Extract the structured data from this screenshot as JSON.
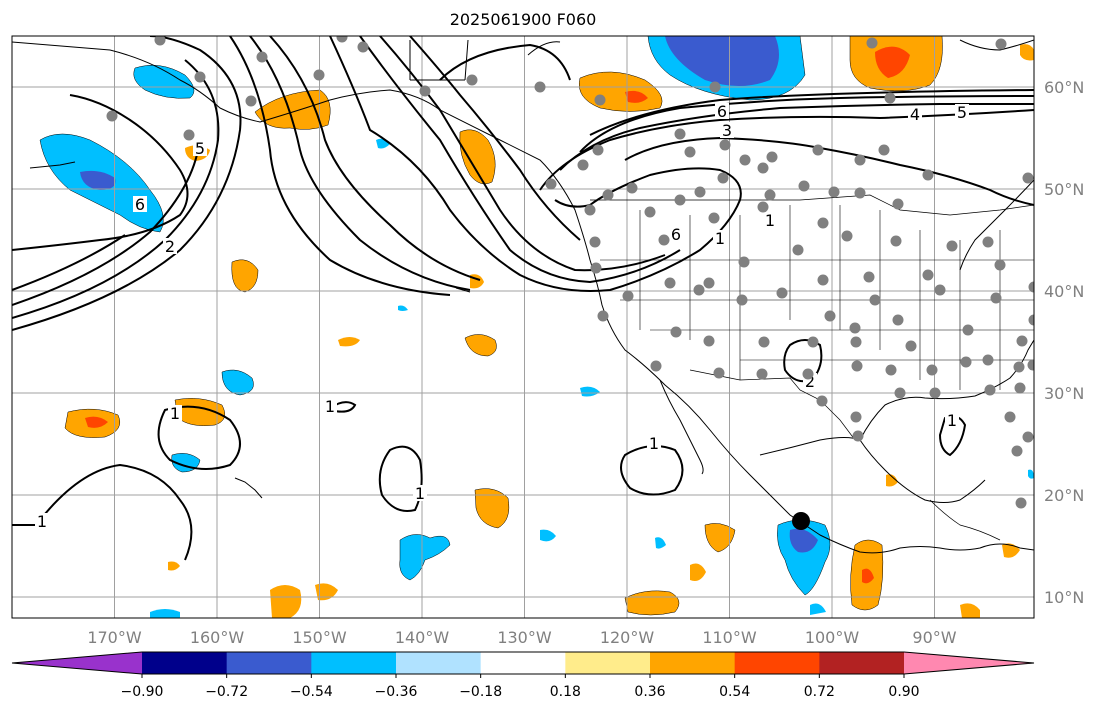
{
  "title": "2025061900 F060",
  "lon_ticks": [
    {
      "lon": -170,
      "label": "170°W"
    },
    {
      "lon": -160,
      "label": "160°W"
    },
    {
      "lon": -150,
      "label": "150°W"
    },
    {
      "lon": -140,
      "label": "140°W"
    },
    {
      "lon": -130,
      "label": "130°W"
    },
    {
      "lon": -120,
      "label": "120°W"
    },
    {
      "lon": -110,
      "label": "110°W"
    },
    {
      "lon": -100,
      "label": "100°W"
    },
    {
      "lon": -90,
      "label": "90°W"
    }
  ],
  "lat_ticks": [
    {
      "lat": 60,
      "label": "60°N"
    },
    {
      "lat": 50,
      "label": "50°N"
    },
    {
      "lat": 40,
      "label": "40°N"
    },
    {
      "lat": 30,
      "label": "30°N"
    },
    {
      "lat": 20,
      "label": "20°N"
    },
    {
      "lat": 10,
      "label": "10°N"
    }
  ],
  "colorbar": {
    "colors": [
      "#9932cc",
      "#00008b",
      "#3a5bcf",
      "#00bfff",
      "#b0e2ff",
      "#ffffff",
      "#ffec8b",
      "#ffa500",
      "#ff4500",
      "#b22222",
      "#ff88b0"
    ],
    "tick_labels": [
      "−0.90",
      "−0.72",
      "−0.54",
      "−0.36",
      "−0.18",
      "0.18",
      "0.36",
      "0.54",
      "0.72",
      "0.90"
    ]
  },
  "contour_labels": [
    "6",
    "2",
    "6",
    "3",
    "5",
    "5",
    "4",
    "6",
    "1",
    "1",
    "1",
    "1",
    "1",
    "1",
    "1",
    "2",
    "1"
  ],
  "colors": {
    "grid": "#a0a0a0",
    "station": "#808080",
    "marker": "#000000",
    "land_line": "#000000"
  }
}
